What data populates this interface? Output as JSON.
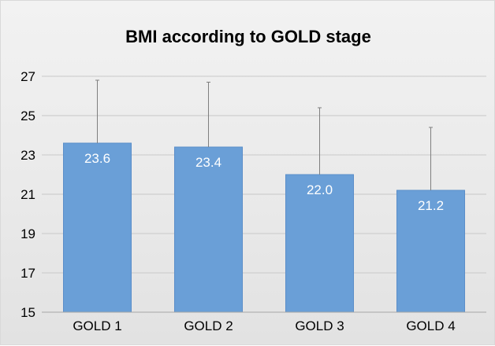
{
  "chart_data": {
    "type": "bar",
    "title": "BMI according to GOLD stage",
    "xlabel": "",
    "ylabel": "",
    "categories": [
      "GOLD 1",
      "GOLD 2",
      "GOLD 3",
      "GOLD 4"
    ],
    "values": [
      23.6,
      23.4,
      22.0,
      21.2
    ],
    "data_labels": [
      "23.6",
      "23.4",
      "22.0",
      "21.2"
    ],
    "error_upper": [
      26.8,
      26.7,
      25.4,
      24.4
    ],
    "ylim": [
      15,
      27
    ],
    "yticks": [
      15,
      17,
      19,
      21,
      23,
      25,
      27
    ],
    "grid": true,
    "legend": "none",
    "colors": {
      "bar": "#6a9fd7",
      "bar_edge": "#5b8fc9",
      "gridline": "#c8c8c8",
      "error_bar": "#7f7f7f",
      "axis": "#a6a6a6"
    }
  }
}
